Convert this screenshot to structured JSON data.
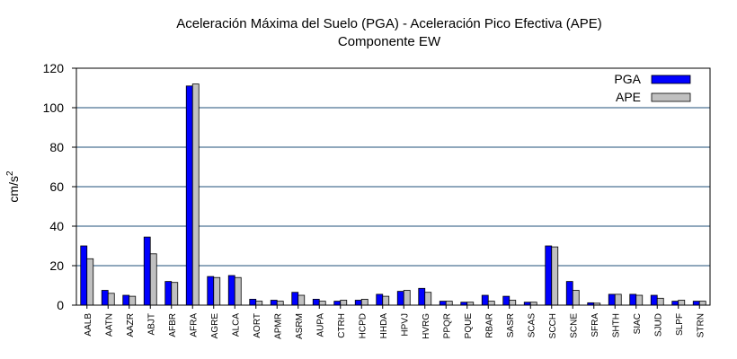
{
  "chart_data": {
    "type": "bar",
    "title": "Aceleración Máxima del Suelo (PGA) -  Aceleración Pico Efectiva (APE)",
    "subtitle": "Componente EW",
    "xlabel": "",
    "ylabel": "cm/s",
    "ylabel_sup": "2",
    "ylim": [
      0,
      120
    ],
    "yticks": [
      0,
      20,
      40,
      60,
      80,
      100,
      120
    ],
    "grid": true,
    "legend_position": "top-right",
    "categories": [
      "AALB",
      "AATN",
      "AAZR",
      "ABJT",
      "AFBR",
      "AFRA",
      "AGRE",
      "ALCA",
      "AORT",
      "APMR",
      "ASRM",
      "AUPA",
      "CTRH",
      "HCPD",
      "HHDA",
      "HPVJ",
      "HVRG",
      "PPQR",
      "PQUE",
      "RBAR",
      "SASR",
      "SCAS",
      "SCCH",
      "SCNE",
      "SFRA",
      "SHTH",
      "SIAC",
      "SJUD",
      "SLPF",
      "STRN"
    ],
    "series": [
      {
        "name": "PGA",
        "color": "#0000ff",
        "values": [
          30,
          7.5,
          5,
          34.5,
          12,
          111,
          14.5,
          15,
          3,
          2.5,
          6.5,
          3,
          2,
          2.5,
          5.5,
          7,
          8.5,
          2,
          1.5,
          5,
          4.5,
          1.5,
          30,
          12,
          1.2,
          5.5,
          5.5,
          5,
          2,
          2
        ]
      },
      {
        "name": "APE",
        "color": "#c0c0c0",
        "values": [
          23.5,
          6,
          4.5,
          26,
          11.5,
          112,
          14,
          14,
          2,
          2,
          5,
          2,
          2.5,
          3,
          4.5,
          7.5,
          6.5,
          2,
          1.5,
          2,
          2.5,
          1.5,
          29.5,
          7.5,
          1,
          5.5,
          5,
          3.5,
          2.5,
          2
        ]
      }
    ]
  }
}
